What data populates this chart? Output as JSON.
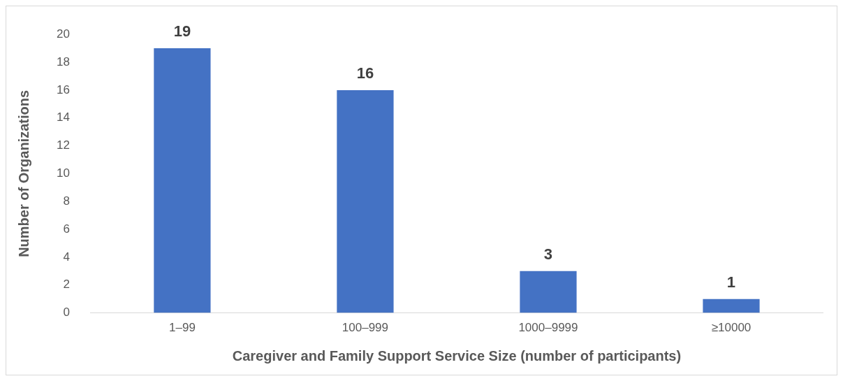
{
  "chart_data": {
    "type": "bar",
    "xlabel": "Caregiver and Family Support Service Size (number of participants)",
    "ylabel": "Number of Organizations",
    "categories": [
      "1–99",
      "100–999",
      "1000–9999",
      "≥10000"
    ],
    "values": [
      19,
      16,
      3,
      1
    ],
    "color": "#4472c4",
    "ylim": [
      0,
      20
    ],
    "yticks": [
      0,
      2,
      4,
      6,
      8,
      10,
      12,
      14,
      16,
      18,
      20
    ],
    "grid": false,
    "data_labels": true,
    "legend": false
  }
}
